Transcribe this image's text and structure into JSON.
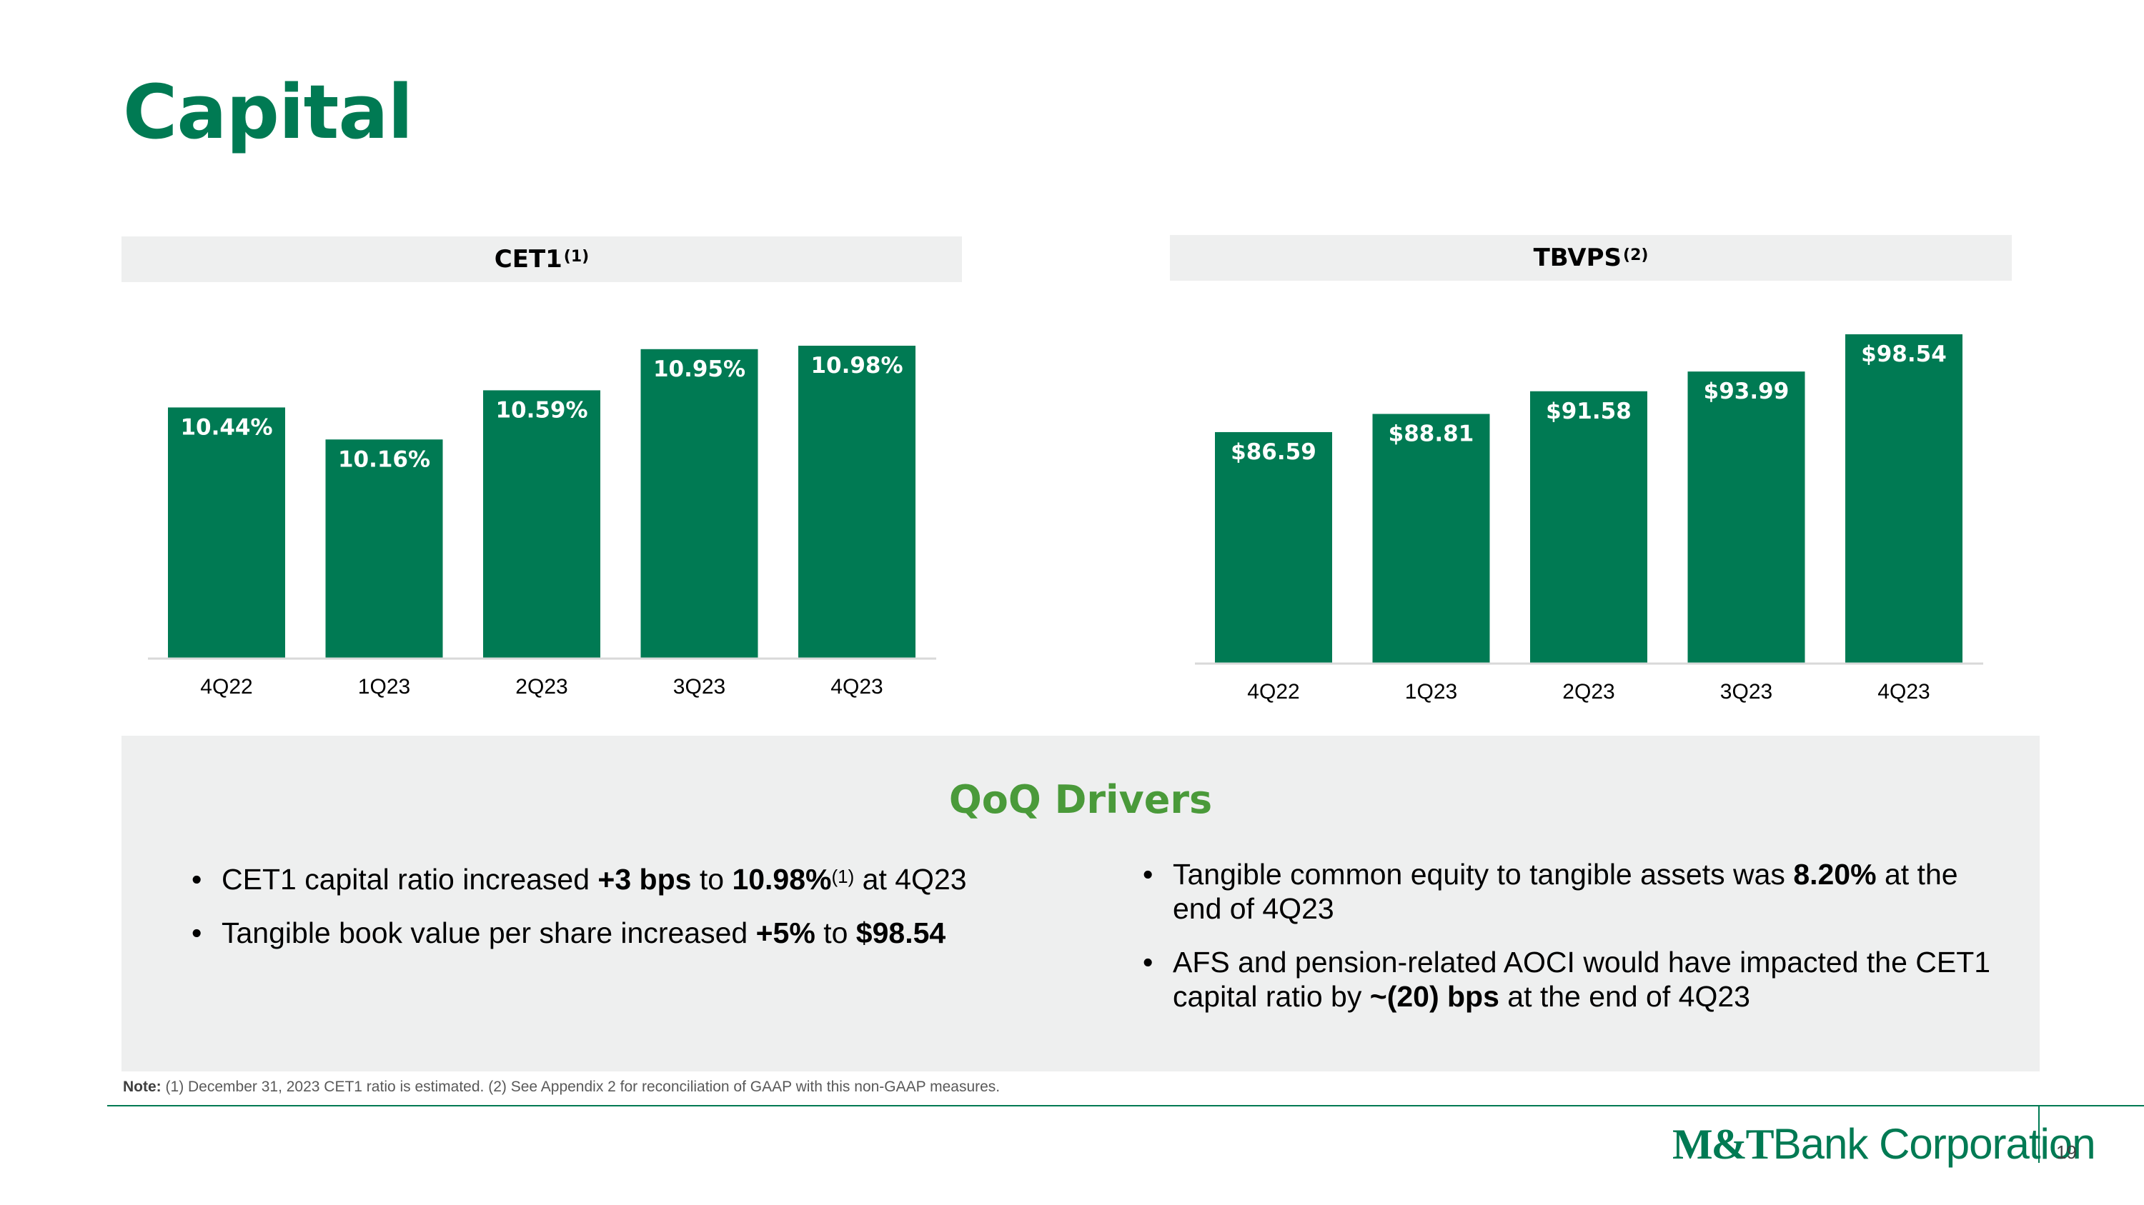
{
  "page": {
    "title": "Capital",
    "page_number": "19"
  },
  "colors": {
    "brand_green": "#007A53",
    "light_green": "#4A9A3A",
    "panel_gray": "#EEEFEF"
  },
  "cet1_header": {
    "label": "CET1",
    "note": "(1)"
  },
  "tbvps_header": {
    "label": "TBVPS",
    "note": "(2)"
  },
  "chart_data": [
    {
      "type": "bar",
      "title": "CET1(1)",
      "categories": [
        "4Q22",
        "1Q23",
        "2Q23",
        "3Q23",
        "4Q23"
      ],
      "values": [
        10.44,
        10.16,
        10.59,
        10.95,
        10.98
      ],
      "labels": [
        "10.44%",
        "10.16%",
        "10.59%",
        "10.95%",
        "10.98%"
      ],
      "ylim": [
        8.25,
        10.98
      ],
      "xlabel": "",
      "ylabel": "",
      "grid": false
    },
    {
      "type": "bar",
      "title": "TBVPS(2)",
      "categories": [
        "4Q22",
        "1Q23",
        "2Q23",
        "3Q23",
        "4Q23"
      ],
      "values": [
        86.59,
        88.81,
        91.58,
        93.99,
        98.54
      ],
      "labels": [
        "$86.59",
        "$88.81",
        "$91.58",
        "$93.99",
        "$98.54"
      ],
      "ylim": [
        58.4,
        98.54
      ],
      "xlabel": "",
      "ylabel": "",
      "grid": false
    }
  ],
  "drivers": {
    "title": "QoQ Drivers",
    "left": {
      "b1": {
        "t1": "CET1 capital ratio increased ",
        "b1": "+3 bps",
        "t2": " to ",
        "b2": "10.98%",
        "sup": "(1)",
        "t3": " at 4Q23"
      },
      "b2": {
        "t1": "Tangible book value per share increased ",
        "b1": "+5%",
        "t2": " to ",
        "b2": "$98.54"
      }
    },
    "right": {
      "b1": {
        "t1": "Tangible common equity to tangible assets was ",
        "b1": "8.20%",
        "t2": " at the end of 4Q23"
      },
      "b2": {
        "t1": "AFS and pension-related AOCI would have impacted the CET1 capital ratio by ",
        "b1": "~(20) bps",
        "t2": " at the end of 4Q23"
      }
    }
  },
  "note": {
    "label": "Note:",
    "text": "(1) December 31, 2023 CET1 ratio is estimated. (2) See Appendix 2 for reconciliation of GAAP with this non-GAAP measures."
  },
  "logo": {
    "mt": "M&T",
    "rest": "Bank Corporation"
  }
}
